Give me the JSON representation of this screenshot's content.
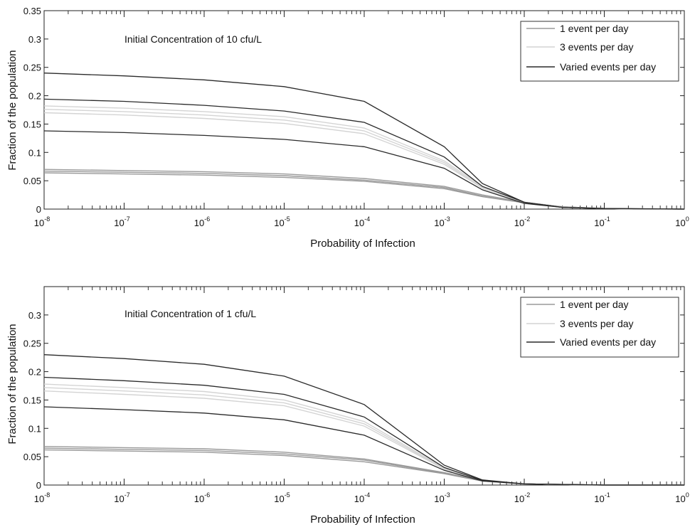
{
  "chart_data": [
    {
      "type": "line",
      "x_scale": "log",
      "xlim": [
        1e-08,
        1
      ],
      "ylim": [
        0,
        0.35
      ],
      "xlabel": "Probability of Infection",
      "ylabel": "Fraction of the population",
      "annotation": "Initial Concentration of 10 cfu/L",
      "legend_position": "top-right",
      "legend": [
        {
          "label": "1 event per day",
          "color": "#9a9a9a"
        },
        {
          "label": "3 events per day",
          "color": "#d4d4d4"
        },
        {
          "label": "Varied events per day",
          "color": "#2a2a2a"
        }
      ],
      "x_ticks": [
        {
          "base": "10",
          "exp": "-8"
        },
        {
          "base": "10",
          "exp": "-7"
        },
        {
          "base": "10",
          "exp": "-6"
        },
        {
          "base": "10",
          "exp": "-5"
        },
        {
          "base": "10",
          "exp": "-4"
        },
        {
          "base": "10",
          "exp": "-3"
        },
        {
          "base": "10",
          "exp": "-2"
        },
        {
          "base": "10",
          "exp": "-1"
        },
        {
          "base": "10",
          "exp": "0"
        }
      ],
      "y_ticks": [
        "0",
        "0.05",
        "0.1",
        "0.15",
        "0.2",
        "0.25",
        "0.3",
        "0.35"
      ],
      "y_tick_values": [
        0,
        0.05,
        0.1,
        0.15,
        0.2,
        0.25,
        0.3,
        0.35
      ],
      "series": [
        {
          "group": 0,
          "x": [
            1e-08,
            1e-07,
            1e-06,
            1e-05,
            0.0001,
            0.001,
            0.003,
            0.01,
            0.03,
            0.1,
            1
          ],
          "y": [
            0.07,
            0.068,
            0.066,
            0.062,
            0.054,
            0.04,
            0.025,
            0.012,
            0.004,
            0.001,
            0.0
          ]
        },
        {
          "group": 0,
          "x": [
            1e-08,
            1e-07,
            1e-06,
            1e-05,
            0.0001,
            0.001,
            0.003,
            0.01,
            0.03,
            0.1,
            1
          ],
          "y": [
            0.067,
            0.065,
            0.063,
            0.059,
            0.051,
            0.038,
            0.023,
            0.011,
            0.004,
            0.001,
            0.0
          ]
        },
        {
          "group": 0,
          "x": [
            1e-08,
            1e-07,
            1e-06,
            1e-05,
            0.0001,
            0.001,
            0.003,
            0.01,
            0.03,
            0.1,
            1
          ],
          "y": [
            0.064,
            0.062,
            0.06,
            0.056,
            0.049,
            0.036,
            0.022,
            0.011,
            0.004,
            0.001,
            0.0
          ]
        },
        {
          "group": 1,
          "x": [
            1e-08,
            1e-07,
            1e-06,
            1e-05,
            0.0001,
            0.001,
            0.003,
            0.01,
            0.03,
            0.1,
            1
          ],
          "y": [
            0.182,
            0.178,
            0.172,
            0.163,
            0.143,
            0.085,
            0.04,
            0.012,
            0.003,
            0.001,
            0.0
          ]
        },
        {
          "group": 1,
          "x": [
            1e-08,
            1e-07,
            1e-06,
            1e-05,
            0.0001,
            0.001,
            0.003,
            0.01,
            0.03,
            0.1,
            1
          ],
          "y": [
            0.176,
            0.172,
            0.166,
            0.157,
            0.138,
            0.082,
            0.038,
            0.012,
            0.003,
            0.001,
            0.0
          ]
        },
        {
          "group": 1,
          "x": [
            1e-08,
            1e-07,
            1e-06,
            1e-05,
            0.0001,
            0.001,
            0.003,
            0.01,
            0.03,
            0.1,
            1
          ],
          "y": [
            0.17,
            0.166,
            0.16,
            0.151,
            0.133,
            0.079,
            0.037,
            0.011,
            0.003,
            0.001,
            0.0
          ]
        },
        {
          "group": 2,
          "x": [
            1e-08,
            1e-07,
            1e-06,
            1e-05,
            0.0001,
            0.001,
            0.003,
            0.01,
            0.03,
            0.1,
            1
          ],
          "y": [
            0.24,
            0.235,
            0.228,
            0.216,
            0.19,
            0.11,
            0.045,
            0.012,
            0.003,
            0.001,
            0.0
          ]
        },
        {
          "group": 2,
          "x": [
            1e-08,
            1e-07,
            1e-06,
            1e-05,
            0.0001,
            0.001,
            0.003,
            0.01,
            0.03,
            0.1,
            1
          ],
          "y": [
            0.194,
            0.19,
            0.183,
            0.173,
            0.153,
            0.092,
            0.04,
            0.012,
            0.003,
            0.001,
            0.0
          ]
        },
        {
          "group": 2,
          "x": [
            1e-08,
            1e-07,
            1e-06,
            1e-05,
            0.0001,
            0.001,
            0.003,
            0.01,
            0.03,
            0.1,
            1
          ],
          "y": [
            0.138,
            0.135,
            0.13,
            0.123,
            0.11,
            0.072,
            0.034,
            0.01,
            0.003,
            0.001,
            0.0
          ]
        }
      ]
    },
    {
      "type": "line",
      "x_scale": "log",
      "xlim": [
        1e-08,
        1
      ],
      "ylim": [
        0,
        0.35
      ],
      "xlabel": "Probability of Infection",
      "ylabel": "Fraction of the population",
      "annotation": "Initial Concentration of 1 cfu/L",
      "legend_position": "top-right",
      "legend": [
        {
          "label": "1 event per day",
          "color": "#9a9a9a"
        },
        {
          "label": "3 events per day",
          "color": "#d4d4d4"
        },
        {
          "label": "Varied events per day",
          "color": "#2a2a2a"
        }
      ],
      "x_ticks": [
        {
          "base": "10",
          "exp": "-8"
        },
        {
          "base": "10",
          "exp": "-7"
        },
        {
          "base": "10",
          "exp": "-6"
        },
        {
          "base": "10",
          "exp": "-5"
        },
        {
          "base": "10",
          "exp": "-4"
        },
        {
          "base": "10",
          "exp": "-3"
        },
        {
          "base": "10",
          "exp": "-2"
        },
        {
          "base": "10",
          "exp": "-1"
        },
        {
          "base": "10",
          "exp": "0"
        }
      ],
      "y_ticks": [
        "0",
        "0.05",
        "0.1",
        "0.15",
        "0.2",
        "0.25",
        "0.3"
      ],
      "y_tick_values": [
        0,
        0.05,
        0.1,
        0.15,
        0.2,
        0.25,
        0.3
      ],
      "series": [
        {
          "group": 0,
          "x": [
            1e-08,
            1e-07,
            1e-06,
            1e-05,
            0.0001,
            0.001,
            0.003,
            0.01,
            0.03,
            0.1,
            1
          ],
          "y": [
            0.068,
            0.066,
            0.064,
            0.058,
            0.046,
            0.022,
            0.008,
            0.002,
            0.001,
            0.0,
            0.0
          ]
        },
        {
          "group": 0,
          "x": [
            1e-08,
            1e-07,
            1e-06,
            1e-05,
            0.0001,
            0.001,
            0.003,
            0.01,
            0.03,
            0.1,
            1
          ],
          "y": [
            0.065,
            0.063,
            0.061,
            0.055,
            0.044,
            0.021,
            0.008,
            0.002,
            0.001,
            0.0,
            0.0
          ]
        },
        {
          "group": 0,
          "x": [
            1e-08,
            1e-07,
            1e-06,
            1e-05,
            0.0001,
            0.001,
            0.003,
            0.01,
            0.03,
            0.1,
            1
          ],
          "y": [
            0.062,
            0.06,
            0.058,
            0.052,
            0.041,
            0.02,
            0.007,
            0.002,
            0.001,
            0.0,
            0.0
          ]
        },
        {
          "group": 1,
          "x": [
            1e-08,
            1e-07,
            1e-06,
            1e-05,
            0.0001,
            0.001,
            0.003,
            0.01,
            0.03,
            0.1,
            1
          ],
          "y": [
            0.178,
            0.172,
            0.165,
            0.15,
            0.112,
            0.03,
            0.008,
            0.002,
            0.001,
            0.0,
            0.0
          ]
        },
        {
          "group": 1,
          "x": [
            1e-08,
            1e-07,
            1e-06,
            1e-05,
            0.0001,
            0.001,
            0.003,
            0.01,
            0.03,
            0.1,
            1
          ],
          "y": [
            0.172,
            0.166,
            0.159,
            0.145,
            0.108,
            0.029,
            0.008,
            0.002,
            0.001,
            0.0,
            0.0
          ]
        },
        {
          "group": 1,
          "x": [
            1e-08,
            1e-07,
            1e-06,
            1e-05,
            0.0001,
            0.001,
            0.003,
            0.01,
            0.03,
            0.1,
            1
          ],
          "y": [
            0.166,
            0.16,
            0.153,
            0.14,
            0.104,
            0.028,
            0.007,
            0.002,
            0.001,
            0.0,
            0.0
          ]
        },
        {
          "group": 2,
          "x": [
            1e-08,
            1e-07,
            1e-06,
            1e-05,
            0.0001,
            0.001,
            0.003,
            0.01,
            0.03,
            0.1,
            1
          ],
          "y": [
            0.23,
            0.223,
            0.213,
            0.192,
            0.142,
            0.035,
            0.009,
            0.002,
            0.001,
            0.0,
            0.0
          ]
        },
        {
          "group": 2,
          "x": [
            1e-08,
            1e-07,
            1e-06,
            1e-05,
            0.0001,
            0.001,
            0.003,
            0.01,
            0.03,
            0.1,
            1
          ],
          "y": [
            0.19,
            0.184,
            0.176,
            0.16,
            0.12,
            0.031,
            0.008,
            0.002,
            0.001,
            0.0,
            0.0
          ]
        },
        {
          "group": 2,
          "x": [
            1e-08,
            1e-07,
            1e-06,
            1e-05,
            0.0001,
            0.001,
            0.003,
            0.01,
            0.03,
            0.1,
            1
          ],
          "y": [
            0.138,
            0.133,
            0.127,
            0.115,
            0.088,
            0.026,
            0.007,
            0.002,
            0.001,
            0.0,
            0.0
          ]
        }
      ]
    }
  ]
}
